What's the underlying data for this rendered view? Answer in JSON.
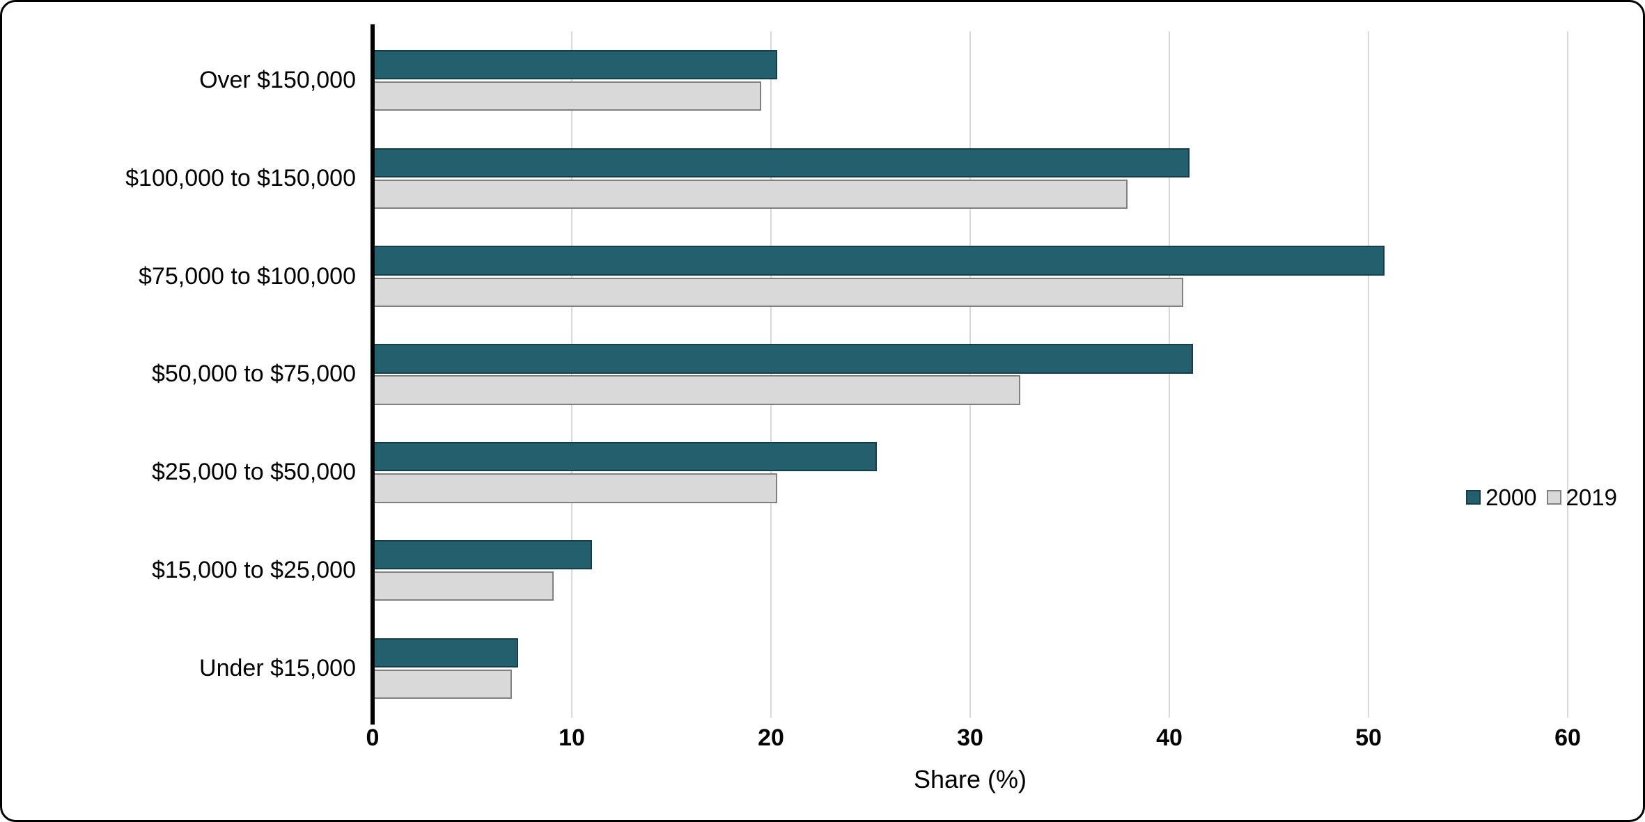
{
  "figure": {
    "background": "#ffffff",
    "border_color": "#000000"
  },
  "chart_data": {
    "type": "bar",
    "orientation": "horizontal",
    "title": "",
    "xlabel": "Share (%)",
    "xlim": [
      0,
      60
    ],
    "xticks": [
      0,
      10,
      20,
      30,
      40,
      50,
      60
    ],
    "grid": "vertical",
    "gridline_color": "#d9d9d9",
    "axis_line_color": "#000000",
    "legend_position": "inside right, between 50 and 60 ticks",
    "categories": [
      "Over $150,000",
      "$100,000 to $150,000",
      "$75,000 to $100,000",
      "$50,000 to $75,000",
      "$25,000 to $50,000",
      "$15,000 to $25,000",
      "Under $15,000"
    ],
    "series": [
      {
        "name": "2000",
        "color": "#245f6e",
        "border_color": "#143f4a",
        "values": [
          20.3,
          41.0,
          50.8,
          41.2,
          25.3,
          11.0,
          7.3
        ]
      },
      {
        "name": "2019",
        "color": "#d9d9d9",
        "border_color": "#808080",
        "values": [
          19.5,
          37.9,
          40.7,
          32.5,
          20.3,
          9.1,
          7.0
        ]
      }
    ]
  }
}
